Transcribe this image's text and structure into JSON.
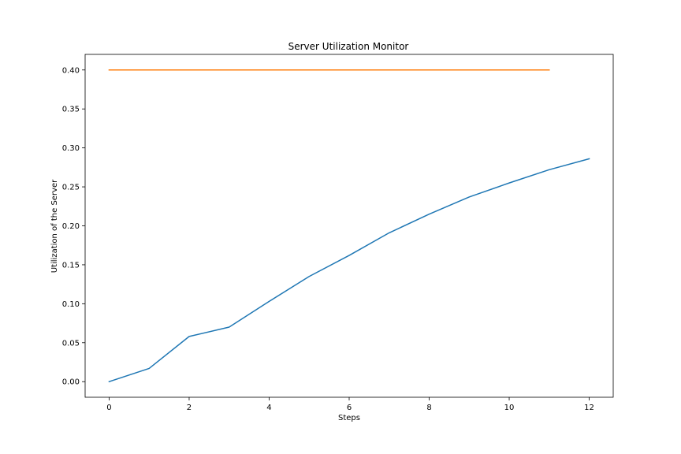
{
  "chart_data": {
    "type": "line",
    "title": "Server Utilization Monitor",
    "xlabel": "Steps",
    "ylabel": "Utilization of the Server",
    "xlim": [
      -0.6,
      12.6
    ],
    "ylim": [
      -0.02,
      0.42
    ],
    "xticks": [
      0,
      2,
      4,
      6,
      8,
      10,
      12
    ],
    "xtick_labels": [
      "0",
      "2",
      "4",
      "6",
      "8",
      "10",
      "12"
    ],
    "yticks": [
      0.0,
      0.05,
      0.1,
      0.15,
      0.2,
      0.25,
      0.3,
      0.35,
      0.4
    ],
    "ytick_labels": [
      "0.00",
      "0.05",
      "0.10",
      "0.15",
      "0.20",
      "0.25",
      "0.30",
      "0.35",
      "0.40"
    ],
    "grid": false,
    "series": [
      {
        "color": "#1f77b4",
        "x": [
          0,
          1,
          2,
          3,
          4,
          5,
          6,
          7,
          8,
          9,
          10,
          11,
          12
        ],
        "y": [
          0.0,
          0.017,
          0.058,
          0.07,
          0.103,
          0.135,
          0.162,
          0.191,
          0.215,
          0.237,
          0.255,
          0.272,
          0.286
        ]
      },
      {
        "color": "#ff7f0e",
        "x": [
          0,
          11
        ],
        "y": [
          0.4,
          0.4
        ]
      }
    ]
  }
}
